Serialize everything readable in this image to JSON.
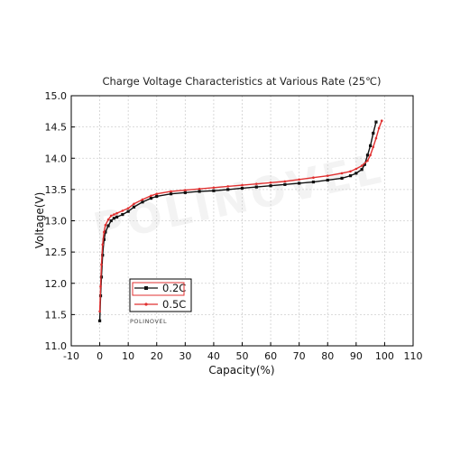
{
  "chart_data": {
    "type": "line",
    "title": "Charge Voltage Characteristics at Various Rate (25℃)",
    "xlabel": "Capacity(%)",
    "ylabel": "Voltage(V)",
    "xlim": [
      -10,
      110
    ],
    "ylim": [
      11.0,
      15.0
    ],
    "x_ticks": [
      -10,
      0,
      10,
      20,
      30,
      40,
      50,
      60,
      70,
      80,
      90,
      100,
      110
    ],
    "y_ticks": [
      11.0,
      11.5,
      12.0,
      12.5,
      13.0,
      13.5,
      14.0,
      14.5,
      15.0
    ],
    "grid": true,
    "legend_position": "lower-left",
    "watermark": "POLINOVEL",
    "brand_label": "POLINOVEL",
    "series": [
      {
        "name": "0.2C",
        "color": "#111111",
        "marker": "square",
        "x": [
          0,
          0.3,
          0.6,
          1,
          1.5,
          2,
          3,
          4,
          5,
          6,
          8,
          10,
          12,
          15,
          18,
          20,
          25,
          30,
          35,
          40,
          45,
          50,
          55,
          60,
          65,
          70,
          75,
          80,
          85,
          88,
          90,
          92,
          93,
          94,
          95,
          96,
          97
        ],
        "y": [
          11.4,
          11.8,
          12.1,
          12.45,
          12.7,
          12.82,
          12.92,
          13.0,
          13.04,
          13.06,
          13.1,
          13.15,
          13.22,
          13.3,
          13.36,
          13.39,
          13.43,
          13.45,
          13.47,
          13.48,
          13.5,
          13.52,
          13.54,
          13.56,
          13.58,
          13.6,
          13.62,
          13.65,
          13.68,
          13.72,
          13.76,
          13.82,
          13.9,
          14.05,
          14.2,
          14.4,
          14.58
        ]
      },
      {
        "name": "0.5C",
        "color": "#e03030",
        "marker": "dot",
        "x": [
          0,
          0.3,
          0.6,
          1,
          1.5,
          2,
          3,
          4,
          5,
          6,
          8,
          10,
          12,
          15,
          18,
          20,
          25,
          30,
          35,
          40,
          45,
          50,
          55,
          60,
          65,
          70,
          75,
          80,
          85,
          88,
          90,
          92,
          94,
          95,
          96,
          97,
          98,
          99
        ],
        "y": [
          11.55,
          11.95,
          12.3,
          12.62,
          12.82,
          12.93,
          13.02,
          13.08,
          13.1,
          13.12,
          13.16,
          13.2,
          13.27,
          13.34,
          13.4,
          13.43,
          13.47,
          13.49,
          13.51,
          13.53,
          13.55,
          13.57,
          13.59,
          13.61,
          13.63,
          13.66,
          13.69,
          13.72,
          13.76,
          13.79,
          13.83,
          13.88,
          13.96,
          14.05,
          14.18,
          14.32,
          14.48,
          14.6
        ]
      }
    ]
  }
}
